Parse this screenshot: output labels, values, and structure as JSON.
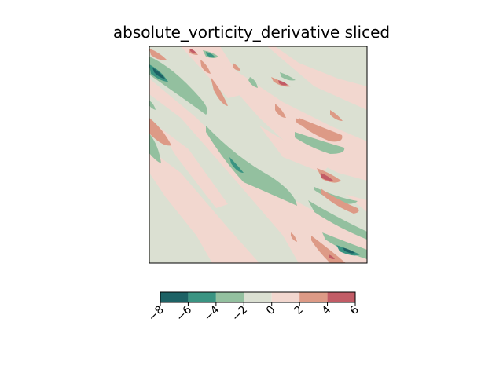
{
  "chart_data": {
    "type": "heatmap",
    "subtype": "filled-contour",
    "title": "absolute_vorticity_derivative sliced",
    "xlabel": "",
    "ylabel": "",
    "axis_ticks_shown": false,
    "grid": false,
    "colorbar": {
      "orientation": "horizontal",
      "placement": "bottom",
      "levels": [
        -8,
        -6,
        -4,
        -2,
        0,
        2,
        4,
        6
      ],
      "tick_labels": [
        "−8",
        "−6",
        "−4",
        "−2",
        "0",
        "2",
        "4",
        "6"
      ],
      "colors": [
        "#1d6265",
        "#3a9482",
        "#93c09f",
        "#dbe0d2",
        "#f2d7cf",
        "#dd9a86",
        "#c25c66"
      ]
    },
    "field_description": "diagonal bands of alternating positive and negative values oriented from top-left to bottom-right; background mostly near zero (-2 to 2)"
  }
}
